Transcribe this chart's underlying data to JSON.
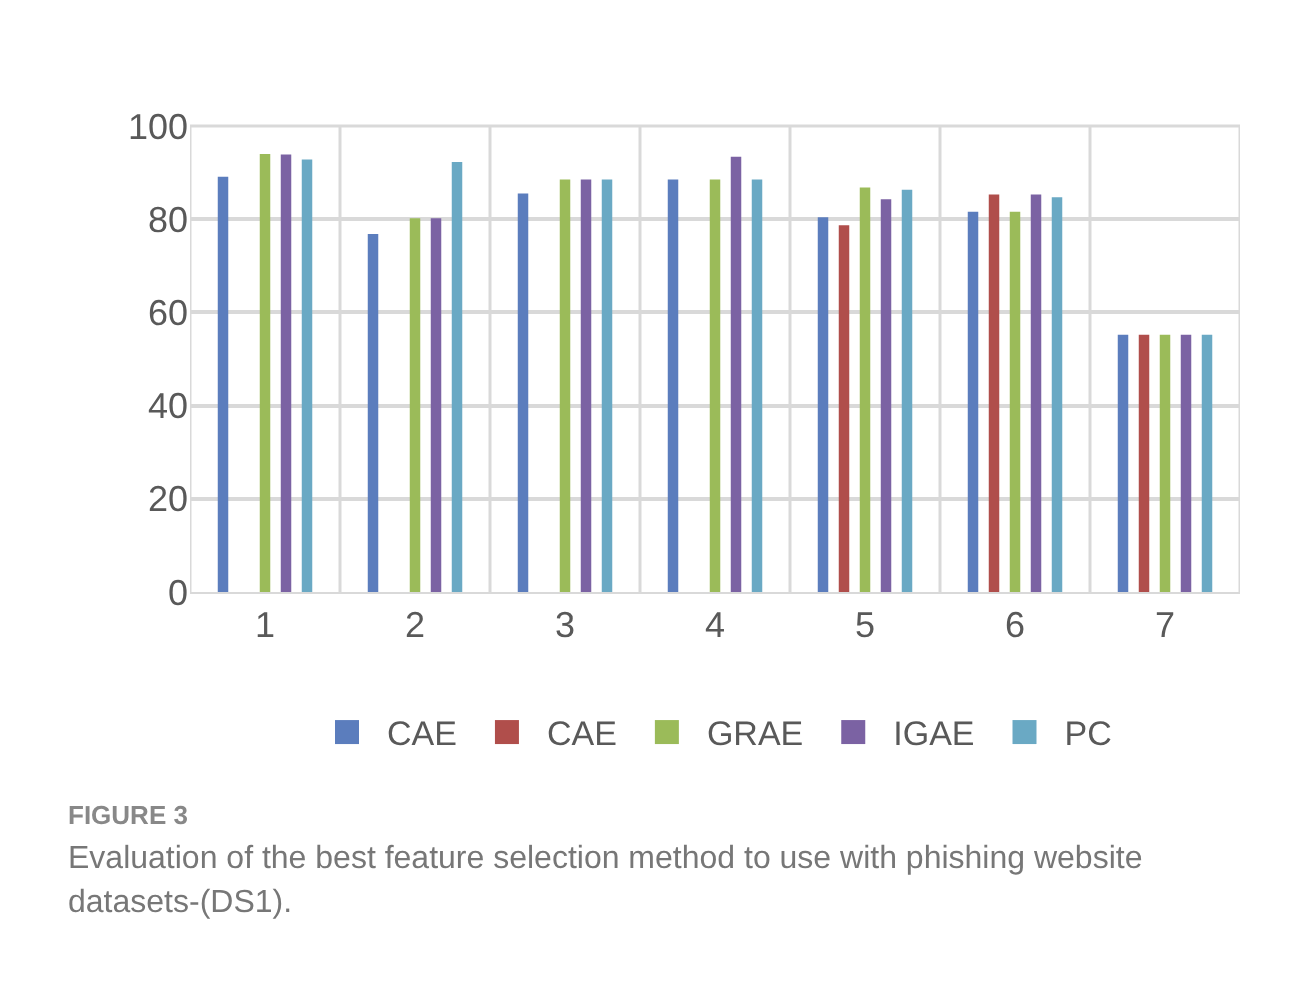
{
  "chart_data": {
    "type": "bar",
    "categories": [
      "1",
      "2",
      "3",
      "4",
      "5",
      "6",
      "7"
    ],
    "series": [
      {
        "name": "CAE",
        "color": "#5b7dbd",
        "values": [
          89.1,
          76.8,
          85.5,
          88.5,
          80.4,
          81.6,
          55.2
        ]
      },
      {
        "name": "CAE",
        "color": "#b04e4b",
        "values": [
          null,
          null,
          null,
          null,
          78.7,
          85.3,
          55.2
        ]
      },
      {
        "name": "GRAE",
        "color": "#9bbb59",
        "values": [
          94.0,
          80.2,
          88.5,
          88.5,
          86.8,
          81.6,
          55.2
        ]
      },
      {
        "name": "IGAE",
        "color": "#7b62a3",
        "values": [
          93.9,
          80.2,
          88.5,
          93.4,
          84.3,
          85.3,
          55.2
        ]
      },
      {
        "name": "PC",
        "color": "#6aa9c4",
        "values": [
          92.8,
          92.3,
          88.5,
          88.5,
          86.3,
          84.7,
          55.2
        ]
      }
    ],
    "ylim": [
      0,
      100
    ],
    "yticks": [
      0,
      20,
      40,
      60,
      80,
      100
    ],
    "grid": true,
    "legend": "bottom",
    "annotations": [
      "FIGURE 3",
      "Evaluation of the best feature selection method to use with phishing website datasets-(DS1)."
    ]
  }
}
